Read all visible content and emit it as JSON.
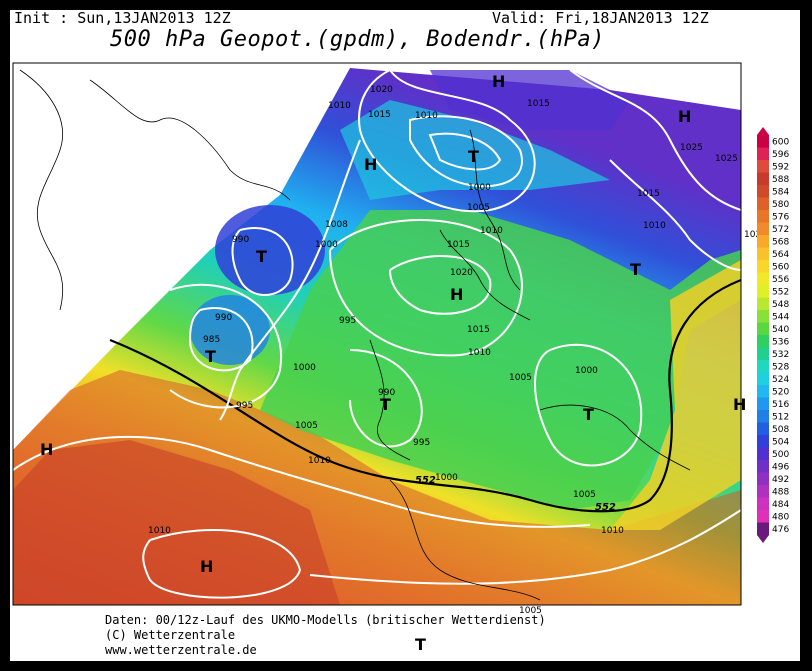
{
  "header": {
    "init_label": "Init : Sun,13JAN2013 12Z",
    "valid_label": "Valid: Fri,18JAN2013 12Z",
    "title": "500 hPa Geopot.(gpdm), Bodendr.(hPa)"
  },
  "footer": {
    "line1": "Daten: 00/12z-Lauf des UKMO-Modells (britischer Wetterdienst)",
    "line2": "(C) Wetterzentrale",
    "line3": "www.wetterzentrale.de"
  },
  "colorbar": {
    "levels": [
      "600",
      "596",
      "592",
      "588",
      "584",
      "580",
      "576",
      "572",
      "568",
      "564",
      "560",
      "556",
      "552",
      "548",
      "544",
      "540",
      "536",
      "532",
      "528",
      "524",
      "520",
      "516",
      "512",
      "508",
      "504",
      "500",
      "496",
      "492",
      "488",
      "484",
      "480",
      "476"
    ],
    "colors": [
      "#cc0044",
      "#dd2255",
      "#e04a3a",
      "#c83a2e",
      "#d04a2a",
      "#e0602a",
      "#e8762a",
      "#f08a2a",
      "#f8a82a",
      "#f8c22a",
      "#f8d62a",
      "#f0e828",
      "#e0f028",
      "#b8e830",
      "#88e038",
      "#58d840",
      "#30d060",
      "#20d090",
      "#20d8c0",
      "#20d0e0",
      "#20b8f0",
      "#2098f0",
      "#2080e8",
      "#2060e0",
      "#3040d8",
      "#5030d0",
      "#7030c8",
      "#9030c0",
      "#b030c0",
      "#d030c0",
      "#e030b8",
      "#6a1a7a"
    ]
  },
  "map": {
    "pressure_labels": [
      "1020",
      "1010",
      "1015",
      "1010",
      "1015",
      "1000",
      "1005",
      "1010",
      "1008",
      "1000",
      "1015",
      "1020",
      "1010",
      "1025",
      "990",
      "985",
      "990",
      "995",
      "1000",
      "995",
      "990",
      "1005",
      "1015",
      "1010",
      "1005",
      "1000",
      "1000",
      "1010",
      "995",
      "1005",
      "1010",
      "1005",
      "1010",
      "1025",
      "1015",
      "1025"
    ],
    "pressure_centers": [
      "H",
      "H",
      "T",
      "H",
      "T",
      "T",
      "H",
      "T",
      "T",
      "T",
      "H",
      "H",
      "T",
      "H"
    ],
    "isoline_552": "552"
  }
}
